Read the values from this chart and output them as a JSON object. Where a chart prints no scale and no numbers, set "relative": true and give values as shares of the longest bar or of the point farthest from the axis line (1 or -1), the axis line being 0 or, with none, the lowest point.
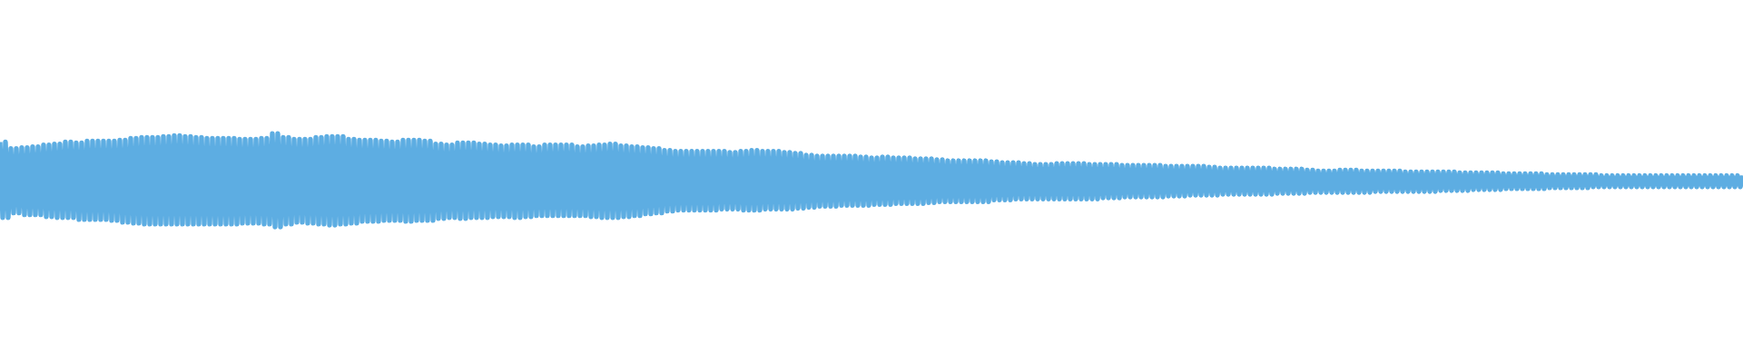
{
  "chart_data": {
    "type": "line",
    "relative": true,
    "color": "#5dade2",
    "categories": [
      null,
      null,
      null,
      null,
      null,
      null,
      null,
      null,
      null,
      null,
      null,
      null,
      null,
      null,
      null,
      null,
      null,
      null,
      null,
      null,
      null,
      null,
      null,
      null,
      null,
      null,
      null,
      null,
      null,
      null,
      null,
      null,
      null,
      null,
      null,
      null,
      null,
      null,
      null,
      null,
      null,
      null,
      null,
      null,
      null,
      null,
      null,
      null,
      null,
      null,
      null,
      null,
      null,
      null,
      null,
      null,
      null,
      null,
      null,
      null,
      null,
      null,
      null,
      null,
      null,
      null,
      null,
      null,
      null,
      null,
      null,
      null,
      null,
      null,
      null,
      null,
      null,
      null,
      null,
      null,
      null,
      null,
      null,
      null,
      null,
      null,
      null,
      null,
      null,
      null,
      null,
      null,
      null,
      null,
      null,
      null,
      null,
      null,
      null,
      null,
      null,
      null,
      null,
      null,
      null,
      null,
      null,
      null,
      null,
      null,
      null,
      null,
      null,
      null,
      null,
      null,
      null,
      null,
      null,
      null,
      null,
      null,
      null,
      null,
      null,
      null,
      null,
      null,
      null,
      null,
      null,
      null,
      null,
      null,
      null,
      null,
      null,
      null,
      null,
      null,
      null,
      null,
      null,
      null,
      null,
      null,
      null,
      null,
      null,
      null,
      null,
      null,
      null,
      null,
      null,
      null,
      null,
      null,
      null,
      null,
      null,
      null,
      null,
      null,
      null,
      null,
      null,
      null,
      null,
      null,
      null,
      null,
      null,
      null,
      null,
      null,
      null,
      null,
      null,
      null,
      null,
      null,
      null,
      null,
      null,
      null,
      null,
      null,
      null,
      null,
      null,
      null,
      null,
      null,
      null,
      null,
      null,
      null,
      null,
      null,
      null,
      null,
      null,
      null,
      null,
      null,
      null,
      null,
      null,
      null,
      null,
      null,
      null,
      null,
      null,
      null,
      null,
      null,
      null,
      null,
      null,
      null,
      null,
      null,
      null,
      null,
      null,
      null,
      null,
      null,
      null,
      null,
      null,
      null,
      null,
      null,
      null,
      null,
      null,
      null,
      null,
      null,
      null,
      null,
      null,
      null,
      null,
      null,
      null,
      null,
      null,
      null,
      null,
      null,
      null,
      null,
      null,
      null,
      null,
      null,
      null,
      null,
      null,
      null,
      null,
      null,
      null,
      null,
      null,
      null,
      null,
      null,
      null,
      null,
      null,
      null,
      null,
      null,
      null,
      null,
      null,
      null,
      null,
      null,
      null,
      null,
      null,
      null,
      null,
      null,
      null,
      null,
      null,
      null,
      null,
      null,
      null,
      null,
      null,
      null,
      null,
      null,
      null,
      null,
      null,
      null,
      null,
      null,
      null,
      null,
      null,
      null,
      null,
      null,
      null,
      null,
      null,
      null,
      null,
      null,
      null,
      null,
      null,
      null,
      null,
      null,
      null,
      null,
      null,
      null,
      null,
      null,
      null,
      null,
      null,
      null,
      null,
      null,
      null,
      null,
      null,
      null,
      null,
      null,
      null,
      null,
      null,
      null,
      null,
      null,
      null,
      null,
      null,
      null,
      null,
      null,
      null,
      null,
      null,
      null,
      null,
      null,
      null,
      null,
      null,
      null,
      null,
      null,
      null,
      null,
      null,
      null,
      null,
      null,
      null,
      null,
      null,
      null,
      null,
      null,
      null,
      null,
      null,
      null,
      null,
      null,
      null,
      null,
      null,
      null,
      null,
      null,
      null,
      null,
      null,
      null,
      null,
      null,
      null,
      null,
      null,
      null,
      null,
      null,
      null,
      null,
      null,
      null,
      null,
      null,
      null,
      null,
      null,
      null,
      null,
      null,
      null,
      null,
      null,
      null,
      null,
      null,
      null,
      null,
      null,
      null,
      null,
      null,
      null,
      null,
      null,
      null,
      null,
      null,
      null,
      null,
      null,
      null,
      null,
      null,
      null,
      null,
      null,
      null,
      null,
      null,
      null,
      null,
      null,
      null,
      null,
      null,
      null,
      null,
      null,
      null,
      null,
      null,
      null,
      null,
      null,
      null,
      null,
      null,
      null,
      null,
      null,
      null,
      null,
      null,
      null,
      null,
      null,
      null,
      null,
      null,
      null,
      null,
      null,
      null,
      null,
      null,
      null,
      null,
      null,
      null,
      null,
      null,
      null,
      null,
      null,
      null,
      null,
      null,
      null,
      null,
      null,
      null,
      null,
      null,
      null,
      null,
      null,
      null,
      null,
      null,
      null,
      null,
      null,
      null,
      null,
      null,
      null,
      null,
      null,
      null,
      null,
      null,
      null,
      null,
      null,
      null,
      null,
      null,
      null,
      null,
      null,
      null,
      null,
      null,
      null,
      null,
      null,
      null,
      null,
      null,
      null,
      null,
      null,
      null,
      null,
      null,
      null,
      null,
      null,
      null,
      null,
      null,
      null,
      null,
      null,
      null,
      null,
      null,
      null,
      null,
      null,
      null,
      null,
      null,
      null,
      null,
      null,
      null,
      null,
      null,
      null,
      null,
      null,
      null,
      null,
      null,
      null,
      null,
      null,
      null,
      null,
      null,
      null,
      null,
      null,
      null,
      null,
      null,
      null,
      null,
      null,
      null,
      null,
      null,
      null,
      null,
      null,
      null,
      null,
      null,
      null,
      null,
      null,
      null,
      null,
      null,
      null,
      null,
      null,
      null,
      null,
      null,
      null,
      null,
      null,
      null,
      null,
      null,
      null,
      null,
      null,
      null,
      null,
      null,
      null,
      null,
      null,
      null,
      null,
      null,
      null,
      null,
      null,
      null,
      null,
      null,
      null,
      null,
      null,
      null,
      null,
      null,
      null,
      null,
      null
    ],
    "values": [
      0.91,
      0.1,
      0.91,
      0.1,
      0.84,
      0.15,
      0.84,
      0.15,
      0.85,
      0.13,
      0.85,
      0.13,
      0.86,
      0.13,
      0.86,
      0.13,
      0.88,
      0.11,
      0.88,
      0.11,
      0.89,
      0.1,
      0.89,
      0.1,
      0.91,
      0.1,
      0.91,
      0.1,
      0.9,
      0.08,
      0.9,
      0.08,
      0.92,
      0.08,
      0.92,
      0.08,
      0.92,
      0.08,
      0.92,
      0.08,
      0.92,
      0.07,
      0.92,
      0.07,
      0.93,
      0.05,
      0.93,
      0.05,
      0.95,
      0.04,
      0.95,
      0.04,
      0.96,
      0.03,
      0.96,
      0.03,
      0.96,
      0.03,
      0.96,
      0.03,
      0.97,
      0.03,
      0.97,
      0.03,
      0.98,
      0.03,
      0.98,
      0.03,
      0.97,
      0.03,
      0.97,
      0.03,
      0.96,
      0.03,
      0.96,
      0.03,
      0.95,
      0.03,
      0.95,
      0.03,
      0.95,
      0.03,
      0.95,
      0.03,
      0.95,
      0.03,
      0.95,
      0.03,
      0.94,
      0.04,
      0.94,
      0.04,
      0.94,
      0.04,
      0.94,
      0.04,
      0.95,
      0.03,
      0.95,
      0.03,
      1,
      0,
      1,
      0,
      0.96,
      0.03,
      0.96,
      0.03,
      0.94,
      0.05,
      0.94,
      0.05,
      0.94,
      0.04,
      0.94,
      0.04,
      0.96,
      0.03,
      0.96,
      0.03,
      0.97,
      0.02,
      0.97,
      0.02,
      0.97,
      0.03,
      0.97,
      0.03,
      0.94,
      0.04,
      0.94,
      0.04,
      0.93,
      0.06,
      0.93,
      0.06,
      0.93,
      0.06,
      0.93,
      0.06,
      0.92,
      0.07,
      0.92,
      0.07,
      0.91,
      0.07,
      0.91,
      0.07,
      0.93,
      0.06,
      0.93,
      0.06,
      0.93,
      0.07,
      0.93,
      0.07,
      0.92,
      0.07,
      0.92,
      0.07,
      0.89,
      0.09,
      0.89,
      0.09,
      0.88,
      0.1,
      0.88,
      0.1,
      0.9,
      0.09,
      0.9,
      0.09,
      0.9,
      0.1,
      0.9,
      0.1,
      0.89,
      0.1,
      0.89,
      0.1,
      0.88,
      0.11,
      0.88,
      0.11,
      0.87,
      0.11,
      0.87,
      0.11,
      0.88,
      0.1,
      0.88,
      0.1,
      0.88,
      0.11,
      0.88,
      0.11,
      0.86,
      0.12,
      0.86,
      0.12,
      0.88,
      0.12,
      0.88,
      0.12,
      0.88,
      0.12,
      0.88,
      0.12,
      0.88,
      0.12,
      0.88,
      0.12,
      0.86,
      0.12,
      0.86,
      0.12,
      0.87,
      0.11,
      0.87,
      0.11,
      0.88,
      0.1,
      0.88,
      0.1,
      0.89,
      0.1,
      0.89,
      0.1,
      0.87,
      0.11,
      0.87,
      0.11,
      0.86,
      0.12,
      0.86,
      0.12,
      0.85,
      0.14,
      0.85,
      0.14,
      0.84,
      0.15,
      0.84,
      0.15,
      0.82,
      0.17,
      0.82,
      0.17,
      0.81,
      0.18,
      0.81,
      0.18,
      0.81,
      0.18,
      0.81,
      0.18,
      0.81,
      0.18,
      0.81,
      0.18,
      0.81,
      0.18,
      0.81,
      0.18,
      0.81,
      0.19,
      0.81,
      0.19,
      0.8,
      0.19,
      0.8,
      0.19,
      0.81,
      0.18,
      0.81,
      0.18,
      0.82,
      0.18,
      0.82,
      0.18,
      0.81,
      0.19,
      0.81,
      0.19,
      0.81,
      0.19,
      0.81,
      0.19,
      0.8,
      0.19,
      0.8,
      0.19,
      0.79,
      0.2,
      0.79,
      0.2,
      0.77,
      0.21,
      0.77,
      0.21,
      0.76,
      0.22,
      0.76,
      0.22,
      0.76,
      0.22,
      0.76,
      0.22,
      0.76,
      0.23,
      0.76,
      0.23,
      0.76,
      0.23,
      0.76,
      0.23,
      0.75,
      0.23,
      0.75,
      0.23,
      0.74,
      0.24,
      0.74,
      0.24,
      0.75,
      0.24,
      0.75,
      0.24,
      0.74,
      0.25,
      0.74,
      0.25,
      0.74,
      0.25,
      0.74,
      0.25,
      0.73,
      0.25,
      0.73,
      0.25,
      0.73,
      0.26,
      0.73,
      0.26,
      0.72,
      0.27,
      0.72,
      0.27,
      0.71,
      0.27,
      0.71,
      0.27,
      0.71,
      0.27,
      0.71,
      0.27,
      0.71,
      0.27,
      0.71,
      0.27,
      0.71,
      0.27,
      0.71,
      0.27,
      0.7,
      0.29,
      0.7,
      0.29,
      0.69,
      0.29,
      0.69,
      0.29,
      0.69,
      0.3,
      0.69,
      0.3,
      0.68,
      0.3,
      0.68,
      0.3,
      0.67,
      0.3,
      0.67,
      0.3,
      0.67,
      0.3,
      0.67,
      0.3,
      0.68,
      0.3,
      0.68,
      0.3,
      0.68,
      0.3,
      0.68,
      0.3,
      0.68,
      0.3,
      0.68,
      0.3,
      0.67,
      0.3,
      0.67,
      0.3,
      0.67,
      0.31,
      0.67,
      0.31,
      0.67,
      0.31,
      0.67,
      0.31,
      0.66,
      0.32,
      0.66,
      0.32,
      0.66,
      0.32,
      0.66,
      0.32,
      0.66,
      0.32,
      0.66,
      0.32,
      0.66,
      0.32,
      0.66,
      0.32,
      0.65,
      0.33,
      0.65,
      0.33,
      0.65,
      0.33,
      0.65,
      0.33,
      0.65,
      0.34,
      0.65,
      0.34,
      0.65,
      0.34,
      0.65,
      0.34,
      0.64,
      0.34,
      0.64,
      0.34,
      0.63,
      0.35,
      0.63,
      0.35,
      0.63,
      0.35,
      0.63,
      0.35,
      0.63,
      0.35,
      0.63,
      0.35,
      0.63,
      0.35,
      0.63,
      0.35,
      0.63,
      0.35,
      0.63,
      0.35,
      0.62,
      0.36,
      0.62,
      0.36,
      0.62,
      0.36,
      0.62,
      0.36,
      0.62,
      0.36,
      0.62,
      0.36,
      0.61,
      0.37,
      0.61,
      0.37,
      0.6,
      0.37,
      0.6,
      0.37,
      0.6,
      0.37,
      0.6,
      0.37,
      0.61,
      0.37,
      0.61,
      0.37,
      0.61,
      0.37,
      0.61,
      0.37,
      0.6,
      0.37,
      0.6,
      0.37,
      0.6,
      0.38,
      0.6,
      0.38,
      0.6,
      0.38,
      0.6,
      0.38,
      0.6,
      0.38,
      0.6,
      0.38,
      0.59,
      0.38,
      0.59,
      0.38,
      0.59,
      0.38,
      0.59,
      0.38,
      0.59,
      0.38,
      0.59,
      0.38,
      0.59,
      0.39,
      0.59,
      0.39,
      0.59,
      0.39,
      0.59,
      0.39,
      0.58,
      0.39,
      0.58,
      0.39,
      0.58,
      0.4,
      0.58,
      0.4,
      0.58,
      0.4,
      0.58,
      0.4,
      0.58,
      0.4,
      0.58,
      0.4,
      0.57,
      0.41,
      0.57,
      0.41,
      0.57,
      0.41,
      0.57,
      0.41,
      0.57,
      0.41,
      0.57,
      0.41,
      0.57,
      0.41,
      0.57,
      0.41,
      0.56,
      0.42,
      0.56,
      0.42,
      0.56,
      0.42,
      0.56,
      0.42,
      0.56,
      0.42,
      0.56,
      0.42,
      0.56,
      0.42,
      0.56,
      0.42,
      0.56,
      0.43,
      0.56,
      0.43,
      0.55,
      0.43,
      0.55,
      0.43,
      0.55,
      0.43,
      0.55,
      0.43,
      0.55,
      0.43,
      0.55,
      0.43,
      0.55,
      0.43,
      0.55,
      0.43,
      0.55,
      0.43,
      0.55,
      0.43,
      0.55,
      0.43,
      0.55,
      0.43,
      0.55,
      0.43,
      0.55,
      0.43,
      0.55,
      0.43,
      0.55,
      0.43,
      0.55,
      0.43,
      0.55,
      0.43,
      0.55,
      0.43,
      0.55,
      0.43,
      0.55,
      0.43,
      0.55,
      0.43,
      0.55,
      0.43,
      0.55,
      0.43,
      0.55,
      0.43,
      0.55,
      0.43,
      0.55
    ]
  }
}
